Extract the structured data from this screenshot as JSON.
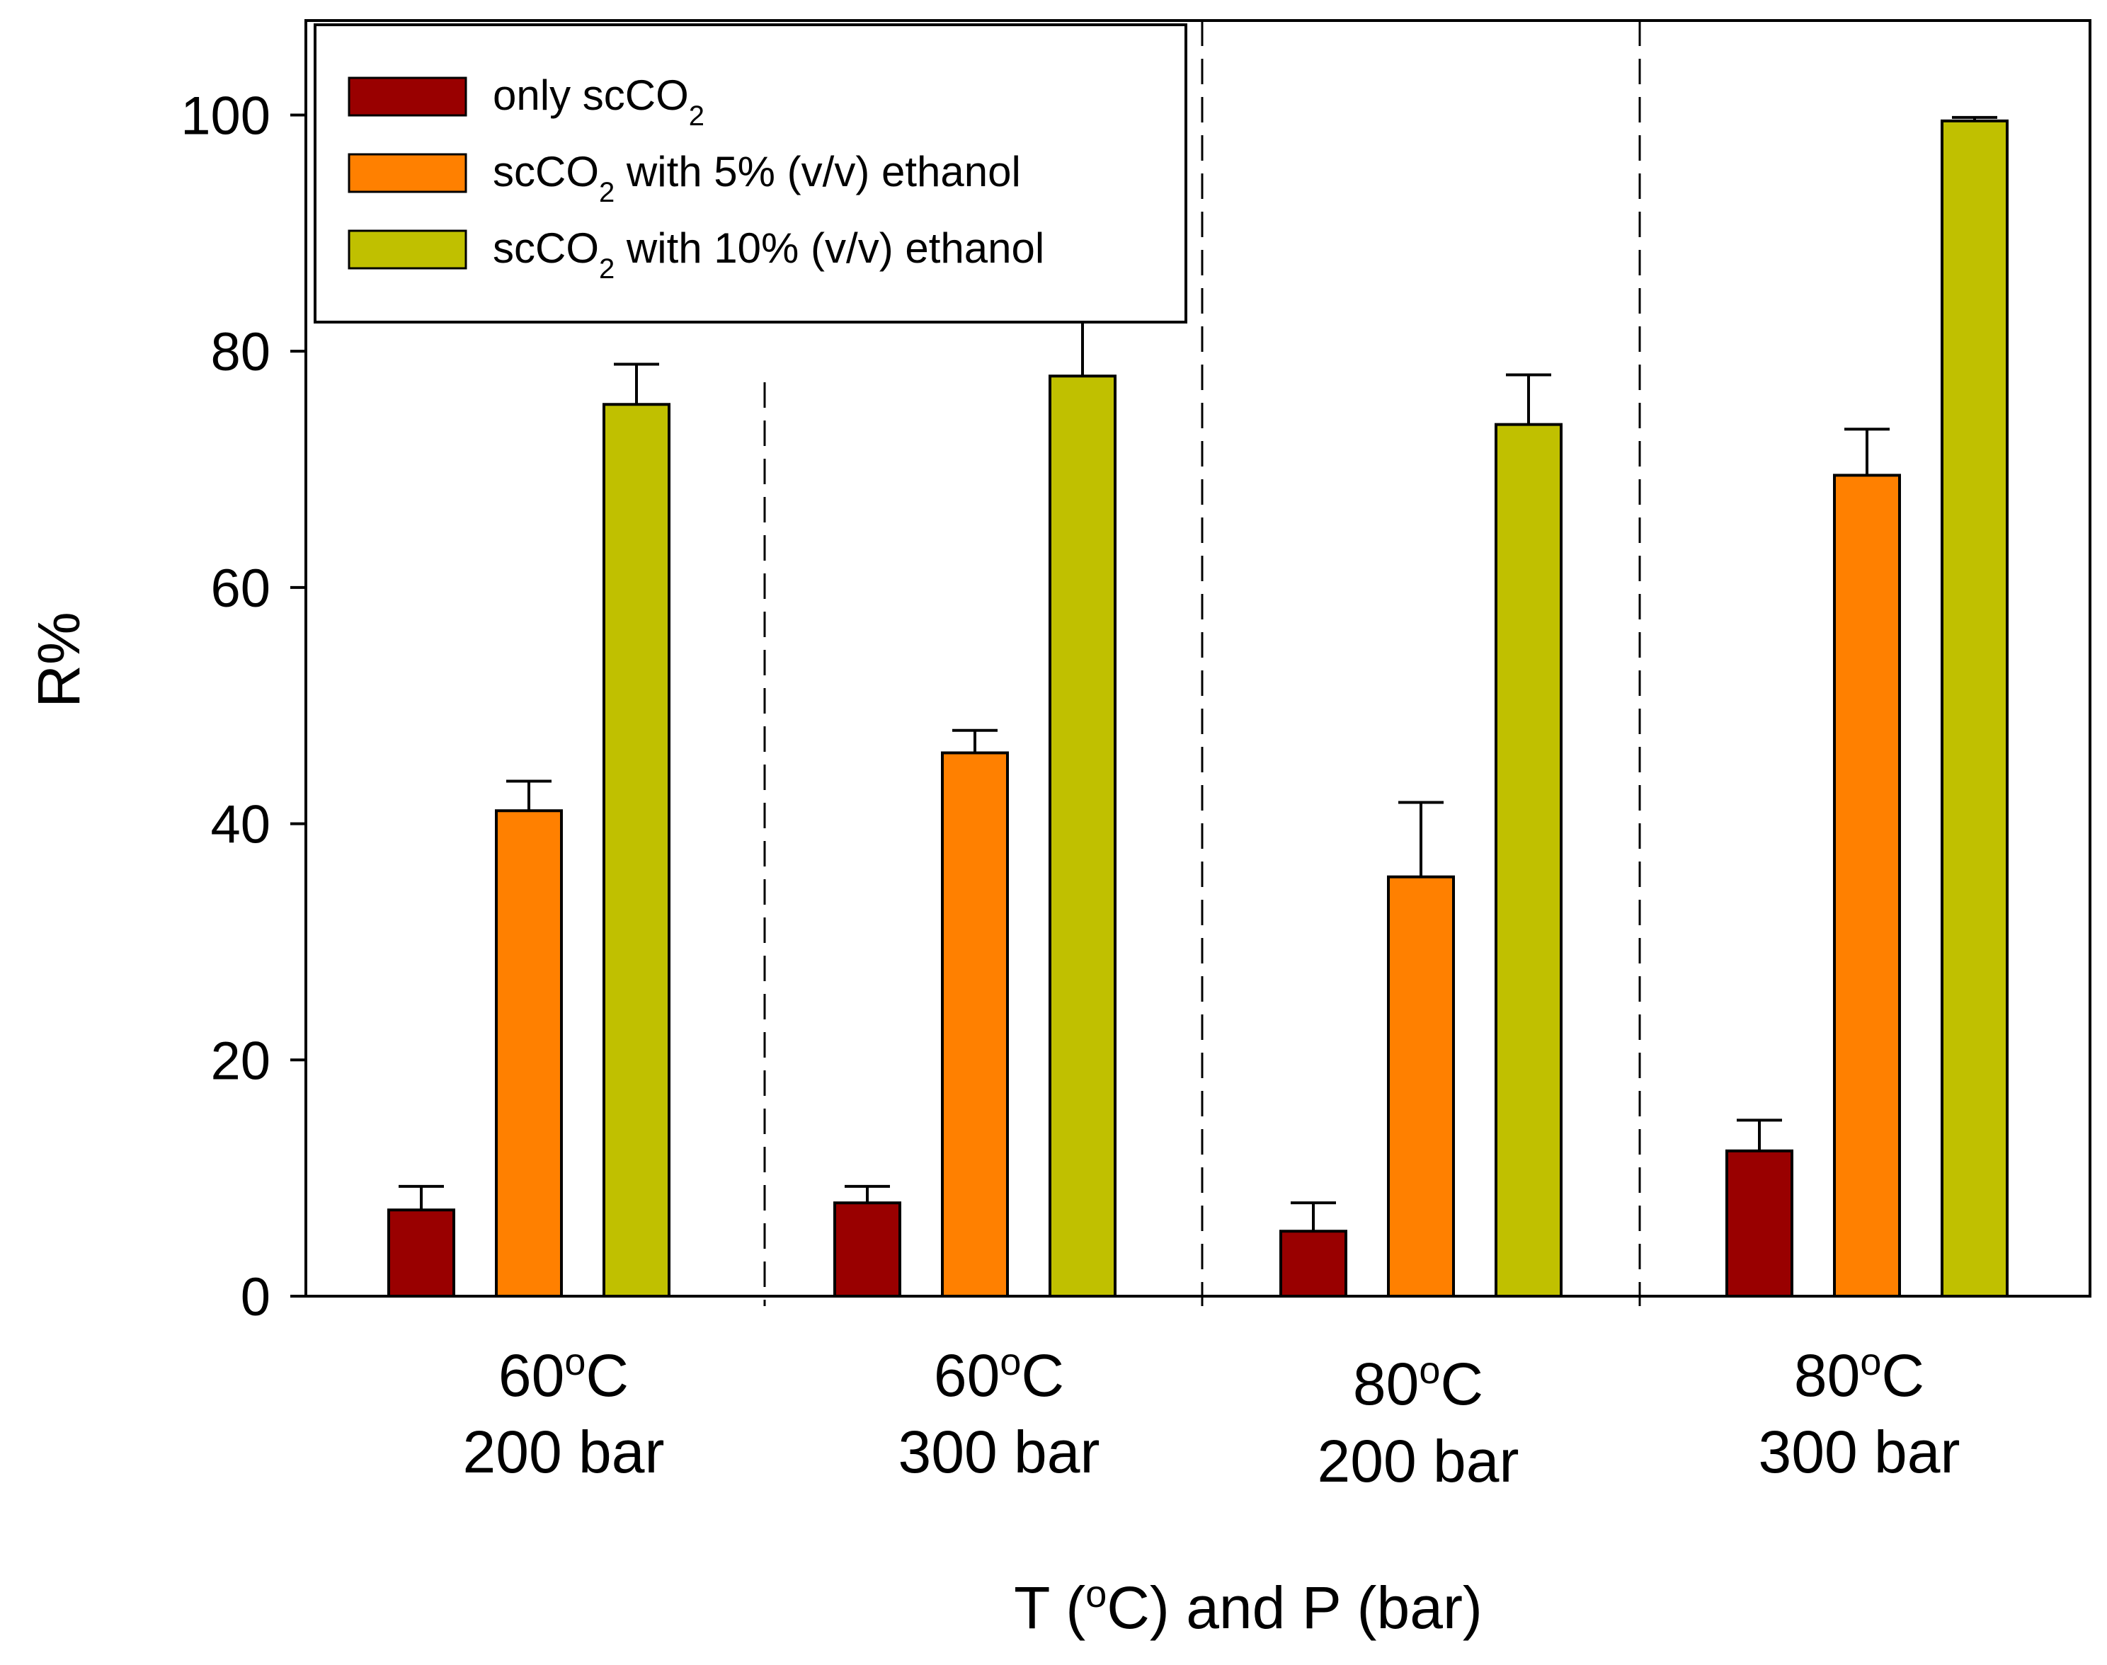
{
  "chart_data": {
    "type": "bar",
    "title": "",
    "xlabel_parts": [
      "T (",
      "o",
      "C) and P (bar)"
    ],
    "ylabel": "R%",
    "ylim": [
      0,
      108
    ],
    "yticks": [
      "0",
      "20",
      "40",
      "60",
      "80",
      "100"
    ],
    "grid": false,
    "legend_position": "top-left",
    "categories": [
      {
        "temp": "60",
        "deg": "o",
        "unit": "C",
        "pressure": "200 bar"
      },
      {
        "temp": "60",
        "deg": "o",
        "unit": "C",
        "pressure": "300 bar"
      },
      {
        "temp": "80",
        "deg": "o",
        "unit": "C",
        "pressure": "200 bar"
      },
      {
        "temp": "80",
        "deg": "o",
        "unit": "C",
        "pressure": "300 bar"
      }
    ],
    "series": [
      {
        "name_main": "only scCO",
        "name_sub": "2",
        "name_rest": "",
        "color": "#990000",
        "values": [
          7.3,
          7.9,
          5.5,
          12.3
        ],
        "errors": [
          2.0,
          1.4,
          2.4,
          2.6
        ]
      },
      {
        "name_main": "scCO",
        "name_sub": "2",
        "name_rest": " with 5% (v/v) ethanol",
        "color": "#ff8000",
        "values": [
          41.1,
          46.0,
          35.5,
          69.5
        ],
        "errors": [
          2.5,
          1.9,
          6.3,
          3.9
        ]
      },
      {
        "name_main": "scCO",
        "name_sub": "2",
        "name_rest": " with 10% (v/v) ethanol",
        "color": "#c0c000",
        "values": [
          75.5,
          77.9,
          73.8,
          99.5
        ],
        "errors": [
          3.4,
          4.7,
          4.2,
          0.3
        ]
      }
    ]
  }
}
